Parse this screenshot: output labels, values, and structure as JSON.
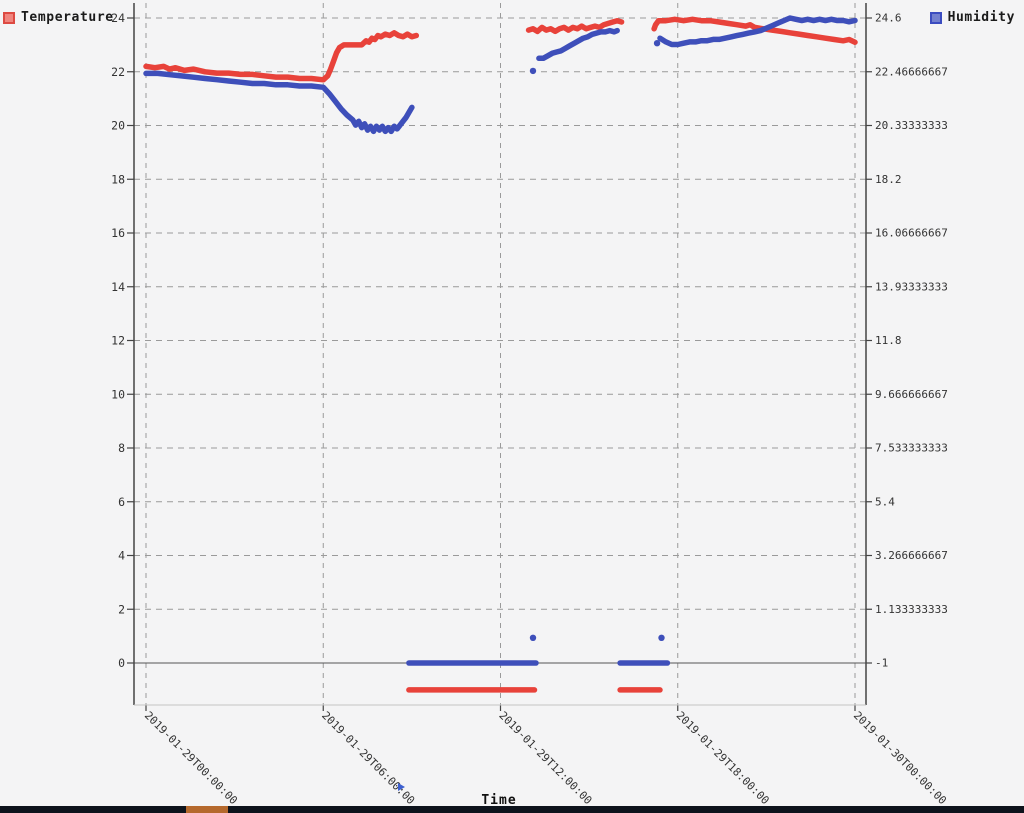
{
  "legend": {
    "temperature": "Temperature",
    "humidity": "Humidity"
  },
  "colors": {
    "temperature": "#e8423a",
    "humidity": "#3e4fba",
    "background": "#f4f4f5",
    "grid": "#9a9a9a",
    "axis": "#444444",
    "zero_line": "#555555",
    "tick_text": "#333333",
    "taskbar": "#0d131c",
    "taskbar_accent": "#b5692d"
  },
  "chart_data": {
    "type": "line",
    "title": "",
    "xlabel": "Time",
    "legend_entries": [
      "Temperature",
      "Humidity"
    ],
    "x_ticks": {
      "hours": [
        0,
        6,
        12,
        18,
        24
      ],
      "labels": [
        "2019-01-29T00:00:00",
        "2019-01-29T06:00:00",
        "2019-01-29T12:00:00",
        "2019-01-29T18:00:00",
        "2019-01-30T00:00:00"
      ]
    },
    "y_left_axis": {
      "series": "Temperature",
      "tick_labels_top_to_bottom": [
        "24",
        "22",
        "20",
        "18",
        "16",
        "14",
        "12",
        "10",
        "8",
        "6",
        "4",
        "2",
        "0"
      ],
      "tick_range": [
        0,
        24
      ]
    },
    "y_right_axis": {
      "series": "Humidity",
      "tick_labels_top_to_bottom": [
        "24.6",
        "22.46666667",
        "20.33333333",
        "18.2",
        "16.06666667",
        "13.93333333",
        "11.8",
        "9.666666667",
        "7.533333333",
        "5.4",
        "3.266666667",
        "1.133333333",
        "-1"
      ],
      "tick_range": [
        -1,
        24.6
      ]
    },
    "series": [
      {
        "name": "Temperature",
        "axis": "left",
        "color": "#e8423a",
        "x_unit": "hours_since_2019-01-29T00:00:00",
        "segments": [
          [
            [
              0,
              22.2
            ],
            [
              0.3,
              22.15
            ],
            [
              0.6,
              22.2
            ],
            [
              0.8,
              22.1
            ],
            [
              1.0,
              22.15
            ],
            [
              1.3,
              22.05
            ],
            [
              1.6,
              22.1
            ],
            [
              2.0,
              22.0
            ],
            [
              2.4,
              21.95
            ],
            [
              2.8,
              21.95
            ],
            [
              3.2,
              21.9
            ],
            [
              3.6,
              21.9
            ],
            [
              4.0,
              21.85
            ],
            [
              4.4,
              21.8
            ],
            [
              4.8,
              21.8
            ],
            [
              5.2,
              21.75
            ],
            [
              5.6,
              21.75
            ],
            [
              6.0,
              21.7
            ],
            [
              6.15,
              21.85
            ],
            [
              6.25,
              22.1
            ],
            [
              6.35,
              22.4
            ],
            [
              6.45,
              22.7
            ],
            [
              6.55,
              22.9
            ],
            [
              6.7,
              23.0
            ],
            [
              7.0,
              23.0
            ],
            [
              7.3,
              23.0
            ],
            [
              7.45,
              23.15
            ],
            [
              7.55,
              23.1
            ],
            [
              7.65,
              23.25
            ],
            [
              7.75,
              23.2
            ],
            [
              7.85,
              23.35
            ],
            [
              7.95,
              23.3
            ],
            [
              8.1,
              23.4
            ],
            [
              8.25,
              23.35
            ],
            [
              8.4,
              23.45
            ],
            [
              8.55,
              23.35
            ],
            [
              8.7,
              23.3
            ],
            [
              8.85,
              23.4
            ],
            [
              9.0,
              23.3
            ],
            [
              9.15,
              23.35
            ]
          ],
          [
            [
              8.9,
              -1
            ],
            [
              13.15,
              -1
            ]
          ],
          [
            [
              12.95,
              23.55
            ],
            [
              13.1,
              23.6
            ],
            [
              13.25,
              23.5
            ],
            [
              13.4,
              23.65
            ],
            [
              13.55,
              23.55
            ],
            [
              13.7,
              23.6
            ],
            [
              13.85,
              23.5
            ],
            [
              14.0,
              23.6
            ],
            [
              14.15,
              23.65
            ],
            [
              14.3,
              23.55
            ],
            [
              14.45,
              23.65
            ],
            [
              14.6,
              23.6
            ],
            [
              14.75,
              23.7
            ],
            [
              14.9,
              23.6
            ],
            [
              15.05,
              23.65
            ],
            [
              15.2,
              23.7
            ],
            [
              15.35,
              23.65
            ],
            [
              15.5,
              23.75
            ],
            [
              15.65,
              23.8
            ],
            [
              15.8,
              23.85
            ],
            [
              15.95,
              23.9
            ],
            [
              16.1,
              23.85
            ]
          ],
          [
            [
              16.05,
              -1
            ],
            [
              17.4,
              -1
            ]
          ],
          [
            [
              17.2,
              23.6
            ],
            [
              17.25,
              23.75
            ],
            [
              17.35,
              23.9
            ],
            [
              17.6,
              23.9
            ],
            [
              17.9,
              23.95
            ],
            [
              18.2,
              23.9
            ],
            [
              18.5,
              23.95
            ],
            [
              18.8,
              23.9
            ],
            [
              19.1,
              23.9
            ],
            [
              19.4,
              23.85
            ],
            [
              19.7,
              23.8
            ],
            [
              20.0,
              23.75
            ],
            [
              20.3,
              23.7
            ],
            [
              20.45,
              23.75
            ],
            [
              20.6,
              23.65
            ],
            [
              20.9,
              23.6
            ],
            [
              21.2,
              23.55
            ],
            [
              21.5,
              23.5
            ],
            [
              21.8,
              23.45
            ],
            [
              22.1,
              23.4
            ],
            [
              22.4,
              23.35
            ],
            [
              22.7,
              23.3
            ],
            [
              23.0,
              23.25
            ],
            [
              23.3,
              23.2
            ],
            [
              23.6,
              23.15
            ],
            [
              23.8,
              23.2
            ],
            [
              24.0,
              23.1
            ]
          ]
        ],
        "isolated_points": []
      },
      {
        "name": "Humidity",
        "axis": "right",
        "color": "#3e4fba",
        "x_unit": "hours_since_2019-01-29T00:00:00",
        "segments": [
          [
            [
              0,
              22.4
            ],
            [
              0.4,
              22.4
            ],
            [
              0.8,
              22.35
            ],
            [
              1.2,
              22.3
            ],
            [
              1.6,
              22.25
            ],
            [
              2.0,
              22.2
            ],
            [
              2.4,
              22.15
            ],
            [
              2.8,
              22.1
            ],
            [
              3.2,
              22.05
            ],
            [
              3.6,
              22.0
            ],
            [
              4.0,
              22.0
            ],
            [
              4.4,
              21.95
            ],
            [
              4.8,
              21.95
            ],
            [
              5.2,
              21.9
            ],
            [
              5.6,
              21.9
            ],
            [
              6.0,
              21.85
            ],
            [
              6.2,
              21.6
            ],
            [
              6.4,
              21.3
            ],
            [
              6.6,
              21.0
            ],
            [
              6.8,
              20.75
            ],
            [
              7.0,
              20.55
            ],
            [
              7.1,
              20.35
            ],
            [
              7.2,
              20.5
            ],
            [
              7.3,
              20.25
            ],
            [
              7.4,
              20.4
            ],
            [
              7.5,
              20.15
            ],
            [
              7.6,
              20.3
            ],
            [
              7.7,
              20.1
            ],
            [
              7.8,
              20.3
            ],
            [
              7.9,
              20.15
            ],
            [
              8.0,
              20.3
            ],
            [
              8.1,
              20.1
            ],
            [
              8.2,
              20.25
            ],
            [
              8.3,
              20.1
            ],
            [
              8.4,
              20.3
            ],
            [
              8.5,
              20.2
            ],
            [
              8.6,
              20.35
            ],
            [
              8.7,
              20.5
            ],
            [
              8.8,
              20.65
            ],
            [
              8.9,
              20.85
            ],
            [
              9.0,
              21.05
            ]
          ],
          [
            [
              8.9,
              -1
            ],
            [
              13.2,
              -1
            ]
          ],
          [
            [
              13.3,
              23.0
            ],
            [
              13.45,
              23.0
            ],
            [
              13.6,
              23.1
            ],
            [
              13.75,
              23.2
            ],
            [
              13.9,
              23.25
            ],
            [
              14.05,
              23.3
            ],
            [
              14.2,
              23.4
            ],
            [
              14.35,
              23.5
            ],
            [
              14.5,
              23.6
            ],
            [
              14.65,
              23.7
            ],
            [
              14.8,
              23.8
            ],
            [
              14.95,
              23.85
            ],
            [
              15.1,
              23.95
            ],
            [
              15.25,
              24.0
            ],
            [
              15.4,
              24.05
            ],
            [
              15.55,
              24.05
            ],
            [
              15.7,
              24.1
            ],
            [
              15.85,
              24.05
            ],
            [
              15.95,
              24.1
            ]
          ],
          [
            [
              16.05,
              -1
            ],
            [
              17.65,
              -1
            ]
          ],
          [
            [
              17.4,
              23.8
            ],
            [
              17.6,
              23.65
            ],
            [
              17.8,
              23.55
            ],
            [
              18.0,
              23.55
            ],
            [
              18.2,
              23.6
            ],
            [
              18.4,
              23.65
            ],
            [
              18.6,
              23.65
            ],
            [
              18.8,
              23.7
            ],
            [
              19.0,
              23.7
            ],
            [
              19.2,
              23.75
            ],
            [
              19.4,
              23.75
            ],
            [
              19.6,
              23.8
            ],
            [
              19.8,
              23.85
            ],
            [
              20.0,
              23.9
            ],
            [
              20.2,
              23.95
            ],
            [
              20.4,
              24.0
            ],
            [
              20.6,
              24.05
            ],
            [
              20.8,
              24.1
            ],
            [
              21.0,
              24.2
            ],
            [
              21.2,
              24.3
            ],
            [
              21.4,
              24.4
            ],
            [
              21.6,
              24.5
            ],
            [
              21.8,
              24.6
            ],
            [
              22.0,
              24.55
            ],
            [
              22.2,
              24.5
            ],
            [
              22.4,
              24.55
            ],
            [
              22.6,
              24.5
            ],
            [
              22.8,
              24.55
            ],
            [
              23.0,
              24.5
            ],
            [
              23.2,
              24.55
            ],
            [
              23.4,
              24.5
            ],
            [
              23.6,
              24.5
            ],
            [
              23.8,
              24.45
            ],
            [
              24.0,
              24.5
            ]
          ]
        ],
        "isolated_points": [
          [
            13.1,
            0
          ],
          [
            13.1,
            22.5
          ],
          [
            17.3,
            23.6
          ],
          [
            17.45,
            0
          ]
        ]
      }
    ]
  }
}
